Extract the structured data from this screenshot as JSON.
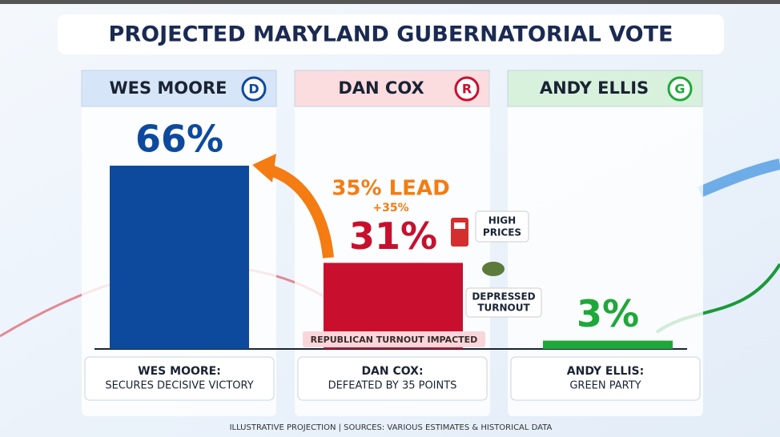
{
  "chart_data": {
    "type": "bar",
    "title": "PROJECTED MARYLAND GUBERNATORIAL VOTE",
    "categories": [
      "WES MOORE",
      "DAN COX",
      "ANDY ELLIS"
    ],
    "party_badges": [
      "D",
      "R",
      "G"
    ],
    "values": [
      66,
      31,
      3
    ],
    "value_labels": [
      "66%",
      "31%",
      "3%"
    ],
    "colors": [
      "#0d4a9e",
      "#c8102e",
      "#1fa83a"
    ],
    "captions": [
      [
        "WES MOORE:",
        "SECURES DECISIVE VICTORY"
      ],
      [
        "DAN COX:",
        "DEFEATED BY 35 POINTS"
      ],
      [
        "ANDY ELLIS:",
        "GREEN PARTY"
      ]
    ],
    "annotations": {
      "lead": "35% LEAD",
      "lead_change": "+35%",
      "high_prices": [
        "HIGH",
        "PRICES"
      ],
      "depressed_turnout": [
        "DEPRESSED",
        "TURNOUT"
      ],
      "turnout_note": "REPUBLICAN TURNOUT IMPACTED"
    },
    "source": "ILLUSTRATIVE PROJECTION | SOURCES: VARIOUS ESTIMATES & HISTORICAL DATA"
  }
}
